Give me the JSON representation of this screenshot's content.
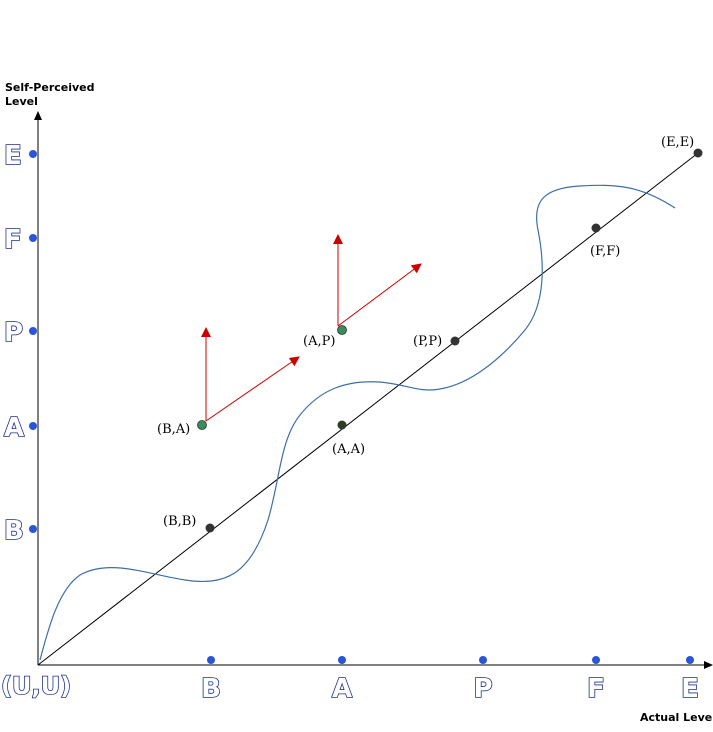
{
  "axes": {
    "y_title_line1": "Self-Perceived",
    "y_title_line2": "Level",
    "x_title": "Actual Level",
    "origin_label": "(U,U)",
    "x_ticks": [
      "B",
      "A",
      "P",
      "F",
      "E"
    ],
    "y_ticks": [
      "B",
      "A",
      "P",
      "F",
      "E"
    ]
  },
  "points": [
    {
      "label": "(B,B)",
      "color": "#333333"
    },
    {
      "label": "(A,A)",
      "color": "#2f3d28"
    },
    {
      "label": "(P,P)",
      "color": "#333333"
    },
    {
      "label": "(F,F)",
      "color": "#333333"
    },
    {
      "label": "(E,E)",
      "color": "#333333"
    },
    {
      "label": "(B,A)",
      "color": "#3e8a5c"
    },
    {
      "label": "(A,P)",
      "color": "#3e8a5c"
    }
  ],
  "colors": {
    "axis": "#000000",
    "diagonal": "#000000",
    "curve": "#3d6fa8",
    "arrow": "#cc0000",
    "tick_dot": "#2b55d6"
  }
}
